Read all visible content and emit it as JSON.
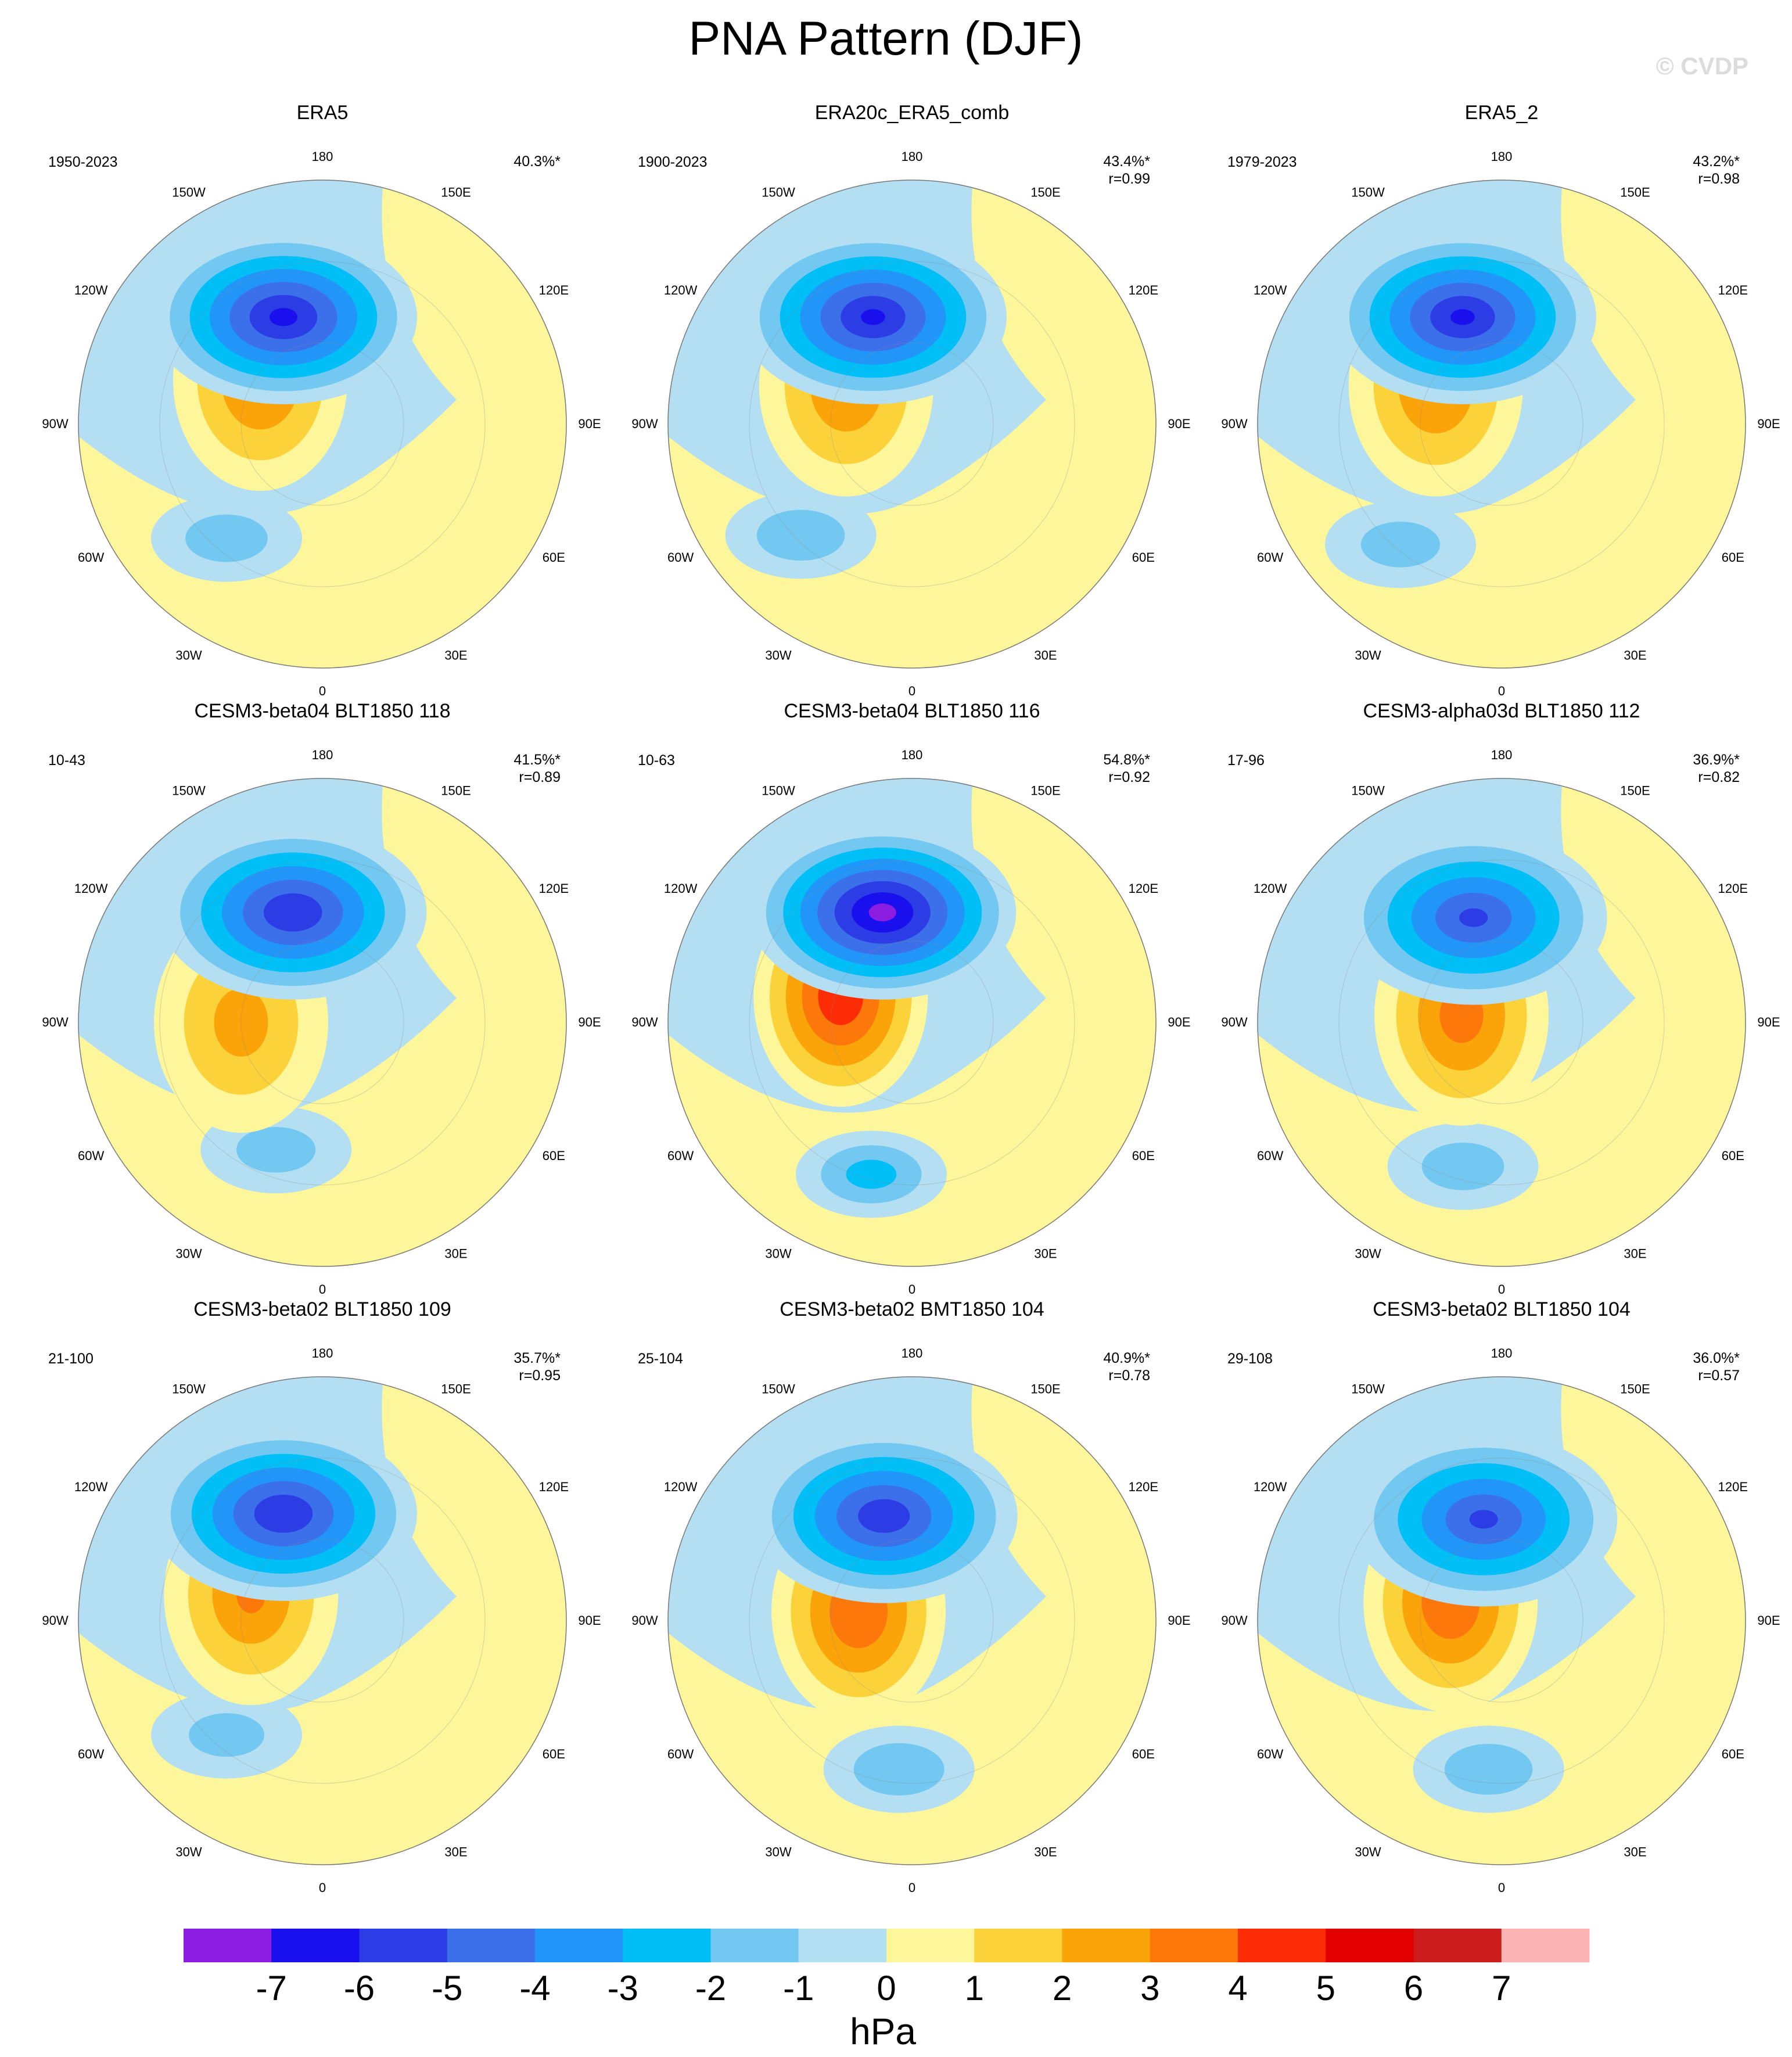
{
  "title": "PNA Pattern (DJF)",
  "credit": "© CVDP",
  "units": "hPa",
  "lon_labels": [
    "180",
    "150E",
    "120E",
    "90E",
    "60E",
    "30E",
    "0",
    "30W",
    "60W",
    "90W",
    "120W",
    "150W"
  ],
  "colorbar": {
    "labels": [
      "-7",
      "-6",
      "-5",
      "-4",
      "-3",
      "-2",
      "-1",
      "0",
      "1",
      "2",
      "3",
      "4",
      "5",
      "6",
      "7"
    ],
    "colors": [
      "#8a1de0",
      "#1a10ee",
      "#2c3de6",
      "#3c70ea",
      "#2196f8",
      "#00bff7",
      "#72c8f1",
      "#b4dff3",
      "#fef69a",
      "#fcd23b",
      "#fba40a",
      "#fc780b",
      "#fb2c06",
      "#e30000",
      "#cc1d1d",
      "#fdb4b4"
    ]
  },
  "panels": [
    {
      "name": "ERA5",
      "years": "1950-2023",
      "pct": "40.3%*",
      "r": "",
      "pattern": {
        "low_amp": 6.1,
        "low_lat": 48,
        "low_lon": -160,
        "high_amp": 3.0,
        "high_lat": 62,
        "high_lon": -125,
        "atl_amp": -1.6,
        "atl_lat": 35,
        "atl_lon": -40
      }
    },
    {
      "name": "ERA20c_ERA5_comb",
      "years": "1900-2023",
      "pct": "43.4%*",
      "r": "r=0.99",
      "pattern": {
        "low_amp": 6.0,
        "low_lat": 48,
        "low_lon": -160,
        "high_amp": 2.8,
        "high_lat": 62,
        "high_lon": -120,
        "atl_amp": -1.8,
        "atl_lat": 32,
        "atl_lon": -45
      }
    },
    {
      "name": "ERA5_2",
      "years": "1979-2023",
      "pct": "43.2%*",
      "r": "r=0.98",
      "pattern": {
        "low_amp": 6.0,
        "low_lat": 48,
        "low_lon": -160,
        "high_amp": 2.9,
        "high_lat": 62,
        "high_lon": -120,
        "atl_amp": -1.5,
        "atl_lat": 32,
        "atl_lon": -40
      }
    },
    {
      "name": "CESM3-beta04 BLT1850 118",
      "years": "10-43",
      "pct": "41.5%*",
      "r": "r=0.89",
      "pattern": {
        "low_amp": 5.8,
        "low_lat": 48,
        "low_lon": -165,
        "high_amp": 2.3,
        "high_lat": 60,
        "high_lon": -90,
        "atl_amp": -1.5,
        "atl_lat": 40,
        "atl_lon": -20
      }
    },
    {
      "name": "CESM3-beta04 BLT1850 116",
      "years": "10-63",
      "pct": "54.8%*",
      "r": "r=0.92",
      "pattern": {
        "low_amp": 7.2,
        "low_lat": 48,
        "low_lon": -165,
        "high_amp": 4.8,
        "high_lat": 62,
        "high_lon": -110,
        "atl_amp": -2.4,
        "atl_lat": 32,
        "atl_lon": -15
      }
    },
    {
      "name": "CESM3-alpha03d BLT1850 112",
      "years": "17-96",
      "pct": "36.9%*",
      "r": "r=0.82",
      "pattern": {
        "low_amp": 5.0,
        "low_lat": 50,
        "low_lon": -165,
        "high_amp": 3.4,
        "high_lat": 75,
        "high_lon": -100,
        "atl_amp": -1.6,
        "atl_lat": 35,
        "atl_lon": -15
      }
    },
    {
      "name": "CESM3-beta02 BLT1850 109",
      "years": "21-100",
      "pct": "35.7%*",
      "r": "r=0.95",
      "pattern": {
        "low_amp": 5.8,
        "low_lat": 48,
        "low_lon": -160,
        "high_amp": 3.0,
        "high_lat": 62,
        "high_lon": -110,
        "atl_amp": -1.4,
        "atl_lat": 35,
        "atl_lon": -40
      }
    },
    {
      "name": "CESM3-beta02 BMT1850 104",
      "years": "25-104",
      "pct": "40.9%*",
      "r": "r=0.78",
      "pattern": {
        "low_amp": 5.6,
        "low_lat": 50,
        "low_lon": -165,
        "high_amp": 3.9,
        "high_lat": 70,
        "high_lon": -100,
        "atl_amp": -1.9,
        "atl_lat": 35,
        "atl_lon": -5
      }
    },
    {
      "name": "CESM3-beta02 BLT1850 104",
      "years": "29-108",
      "pct": "36.0%*",
      "r": "r=0.57",
      "pattern": {
        "low_amp": 5.0,
        "low_lat": 52,
        "low_lon": -170,
        "high_amp": 3.9,
        "high_lat": 70,
        "high_lon": -110,
        "atl_amp": -1.8,
        "atl_lat": 35,
        "atl_lon": -5
      }
    }
  ]
}
